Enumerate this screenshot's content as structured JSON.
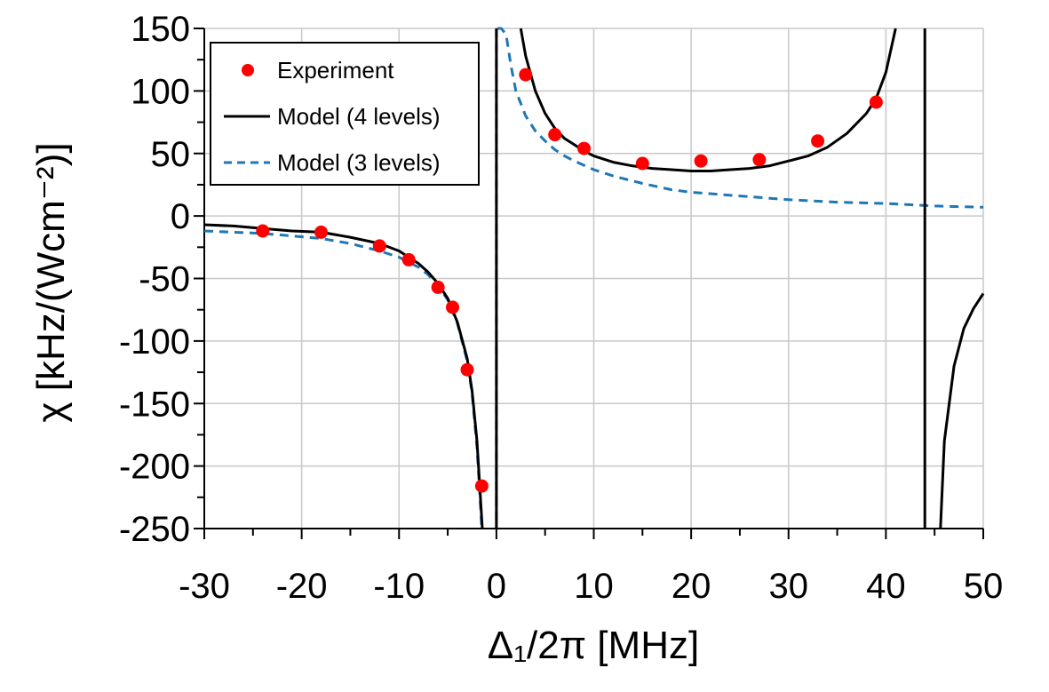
{
  "chart_data": {
    "type": "line",
    "title": "",
    "xlabel": "Δ₁/2π [MHz]",
    "ylabel": "χ [kHz/(Wcm⁻²)]",
    "xlim": [
      -30,
      50
    ],
    "ylim": [
      -250,
      150
    ],
    "x_ticks": [
      "-30",
      "-20",
      "-10",
      "0",
      "10",
      "20",
      "30",
      "40",
      "50"
    ],
    "y_ticks": [
      "150",
      "100",
      "50",
      "0",
      "-50",
      "-100",
      "-150",
      "-200",
      "-250"
    ],
    "grid": true,
    "legend_position": "top-left",
    "series": [
      {
        "name": "Experiment",
        "kind": "scatter",
        "color": "#ff0000",
        "points": [
          [
            -24,
            -12
          ],
          [
            -18,
            -13
          ],
          [
            -12,
            -24
          ],
          [
            -9,
            -35
          ],
          [
            -6,
            -57
          ],
          [
            -4.5,
            -73
          ],
          [
            -3,
            -123
          ],
          [
            -1.5,
            -216
          ],
          [
            3,
            113
          ],
          [
            6,
            65
          ],
          [
            9,
            54
          ],
          [
            15,
            42
          ],
          [
            21,
            44
          ],
          [
            27,
            45
          ],
          [
            33,
            60
          ],
          [
            39,
            91
          ]
        ]
      },
      {
        "name": "Model (4 levels)",
        "kind": "line",
        "color": "#000000",
        "dash": "solid",
        "points": [
          [
            -30,
            -7
          ],
          [
            -27,
            -8
          ],
          [
            -24,
            -10
          ],
          [
            -21,
            -12
          ],
          [
            -18,
            -13
          ],
          [
            -15,
            -17
          ],
          [
            -12,
            -22
          ],
          [
            -10,
            -28
          ],
          [
            -9,
            -33
          ],
          [
            -8,
            -38
          ],
          [
            -7,
            -45
          ],
          [
            -6,
            -54
          ],
          [
            -5,
            -66
          ],
          [
            -4,
            -85
          ],
          [
            -3,
            -114
          ],
          [
            -2.5,
            -140
          ],
          [
            -2,
            -180
          ],
          [
            -1.6,
            -230
          ],
          [
            -1.45,
            -250
          ]
        ],
        "segments": [
          [
            [
              2.5,
              150
            ],
            [
              3,
              128
            ],
            [
              4,
              100
            ],
            [
              5,
              82
            ],
            [
              6,
              70
            ],
            [
              7,
              62
            ],
            [
              8,
              57
            ],
            [
              9,
              52
            ],
            [
              10,
              48
            ],
            [
              12,
              43
            ],
            [
              14,
              40
            ],
            [
              16,
              38
            ],
            [
              18,
              37
            ],
            [
              20,
              36
            ],
            [
              22,
              36
            ],
            [
              24,
              37
            ],
            [
              26,
              38
            ],
            [
              28,
              40
            ],
            [
              30,
              44
            ],
            [
              32,
              48
            ],
            [
              34,
              55
            ],
            [
              36,
              66
            ],
            [
              38,
              82
            ],
            [
              39,
              94
            ],
            [
              40,
              115
            ],
            [
              41,
              150
            ]
          ],
          [
            [
              45.6,
              -250
            ],
            [
              46,
              -180
            ],
            [
              47,
              -120
            ],
            [
              48,
              -90
            ],
            [
              49,
              -74
            ],
            [
              50,
              -62
            ]
          ]
        ],
        "vertical_asymptotes": [
          0,
          44
        ]
      },
      {
        "name": "Model (3 levels)",
        "kind": "line",
        "color": "#1f77b4",
        "dash": "dashed",
        "points": [
          [
            -30,
            -12
          ],
          [
            -27,
            -13
          ],
          [
            -24,
            -14
          ],
          [
            -21,
            -16
          ],
          [
            -18,
            -18
          ],
          [
            -15,
            -22
          ],
          [
            -12,
            -28
          ],
          [
            -10,
            -33
          ],
          [
            -9,
            -37
          ],
          [
            -8,
            -41
          ],
          [
            -7,
            -47
          ],
          [
            -6,
            -56
          ],
          [
            -5,
            -67
          ],
          [
            -4,
            -86
          ],
          [
            -3,
            -116
          ],
          [
            -2.5,
            -142
          ],
          [
            -2,
            -185
          ],
          [
            -1.65,
            -230
          ],
          [
            -1.5,
            -250
          ]
        ],
        "segments": [
          [
            [
              0.1,
              150
            ],
            [
              0.5,
              150
            ],
            [
              1,
              145
            ],
            [
              1.5,
              120
            ],
            [
              2,
              100
            ],
            [
              3,
              80
            ],
            [
              4,
              68
            ],
            [
              5,
              60
            ],
            [
              6,
              53
            ],
            [
              7,
              48
            ],
            [
              8,
              44
            ],
            [
              10,
              37
            ],
            [
              12,
              32
            ],
            [
              15,
              26
            ],
            [
              18,
              21
            ],
            [
              20,
              19
            ],
            [
              25,
              16
            ],
            [
              30,
              13
            ],
            [
              35,
              11
            ],
            [
              40,
              10
            ],
            [
              45,
              8
            ],
            [
              50,
              7
            ]
          ]
        ],
        "vertical_asymptotes": [
          0
        ]
      }
    ]
  }
}
